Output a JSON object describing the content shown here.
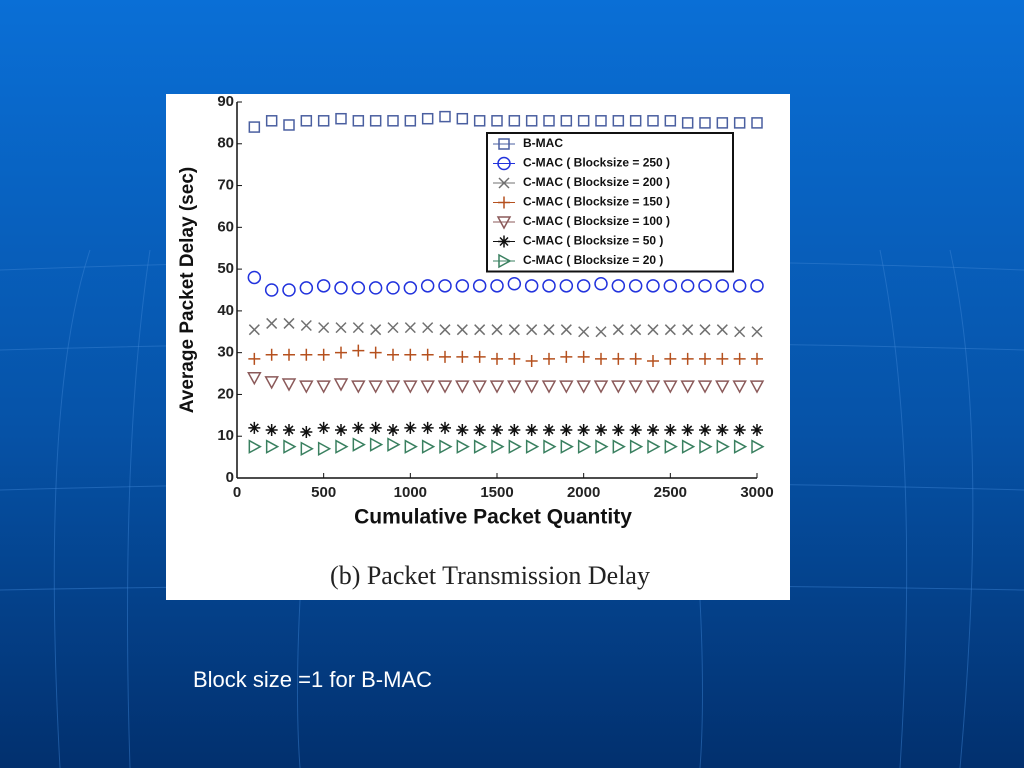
{
  "slide_text": "Block size =1 for B-MAC",
  "chart_data": {
    "type": "scatter",
    "title": "(b) Packet Transmission Delay",
    "x_label": "Cumulative Packet Quantity",
    "y_label": "Average Packet Delay (sec)",
    "x": [
      100,
      200,
      300,
      400,
      500,
      600,
      700,
      800,
      900,
      1000,
      1100,
      1200,
      1300,
      1400,
      1500,
      1600,
      1700,
      1800,
      1900,
      2000,
      2100,
      2200,
      2300,
      2400,
      2500,
      2600,
      2700,
      2800,
      2900,
      3000
    ],
    "series": [
      {
        "name": "B-MAC",
        "color": "#4a5fa0",
        "marker": "square",
        "values": [
          84,
          85.5,
          84.5,
          85.5,
          85.5,
          86,
          85.5,
          85.5,
          85.5,
          85.5,
          86,
          86.5,
          86,
          85.5,
          85.5,
          85.5,
          85.5,
          85.5,
          85.5,
          85.5,
          85.5,
          85.5,
          85.5,
          85.5,
          85.5,
          85,
          85,
          85,
          85,
          85
        ]
      },
      {
        "name": "C-MAC ( Blocksize = 250 )",
        "color": "#2233dd",
        "marker": "circle",
        "values": [
          48,
          45,
          45,
          45.5,
          46,
          45.5,
          45.5,
          45.5,
          45.5,
          45.5,
          46,
          46,
          46,
          46,
          46,
          46.5,
          46,
          46,
          46,
          46,
          46.5,
          46,
          46,
          46,
          46,
          46,
          46,
          46,
          46,
          46
        ]
      },
      {
        "name": "C-MAC ( Blocksize = 200 )",
        "color": "#707070",
        "marker": "x",
        "values": [
          35.5,
          37,
          37,
          36.5,
          36,
          36,
          36,
          35.5,
          36,
          36,
          36,
          35.5,
          35.5,
          35.5,
          35.5,
          35.5,
          35.5,
          35.5,
          35.5,
          35,
          35,
          35.5,
          35.5,
          35.5,
          35.5,
          35.5,
          35.5,
          35.5,
          35,
          35
        ]
      },
      {
        "name": "C-MAC ( Blocksize = 150 )",
        "color": "#b5501e",
        "marker": "plus",
        "values": [
          28.5,
          29.5,
          29.5,
          29.5,
          29.5,
          30,
          30.5,
          30,
          29.5,
          29.5,
          29.5,
          29,
          29,
          29,
          28.5,
          28.5,
          28,
          28.5,
          29,
          29,
          28.5,
          28.5,
          28.5,
          28,
          28.5,
          28.5,
          28.5,
          28.5,
          28.5,
          28.5
        ]
      },
      {
        "name": "C-MAC ( Blocksize = 100 )",
        "color": "#8b5a5a",
        "marker": "triangle-down",
        "values": [
          24,
          23,
          22.5,
          22,
          22,
          22.5,
          22,
          22,
          22,
          22,
          22,
          22,
          22,
          22,
          22,
          22,
          22,
          22,
          22,
          22,
          22,
          22,
          22,
          22,
          22,
          22,
          22,
          22,
          22,
          22
        ]
      },
      {
        "name": "C-MAC ( Blocksize = 50 )",
        "color": "#111111",
        "marker": "asterisk",
        "values": [
          12,
          11.5,
          11.5,
          11,
          12,
          11.5,
          12,
          12,
          11.5,
          12,
          12,
          12,
          11.5,
          11.5,
          11.5,
          11.5,
          11.5,
          11.5,
          11.5,
          11.5,
          11.5,
          11.5,
          11.5,
          11.5,
          11.5,
          11.5,
          11.5,
          11.5,
          11.5,
          11.5
        ]
      },
      {
        "name": "C-MAC ( Blocksize = 20 )",
        "color": "#3a8060",
        "marker": "triangle-right",
        "values": [
          7.5,
          7.5,
          7.5,
          7,
          7,
          7.5,
          8,
          8,
          8,
          7.5,
          7.5,
          7.5,
          7.5,
          7.5,
          7.5,
          7.5,
          7.5,
          7.5,
          7.5,
          7.5,
          7.5,
          7.5,
          7.5,
          7.5,
          7.5,
          7.5,
          7.5,
          7.5,
          7.5,
          7.5
        ]
      }
    ],
    "xlim": [
      0,
      3000
    ],
    "xticks": [
      0,
      500,
      1000,
      1500,
      2000,
      2500,
      3000
    ],
    "ylim": [
      0,
      90
    ],
    "yticks": [
      0,
      10,
      20,
      30,
      40,
      50,
      60,
      70,
      80,
      90
    ],
    "grid": false,
    "legend": "upper right"
  }
}
